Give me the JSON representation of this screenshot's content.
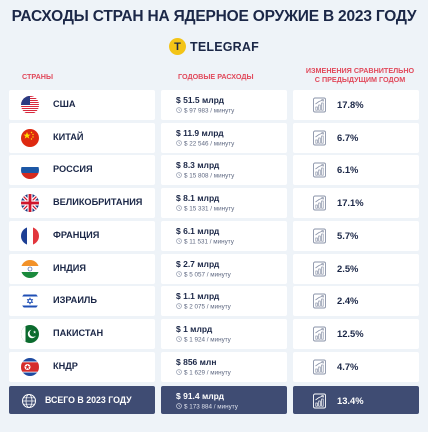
{
  "title": "РАСХОДЫ СТРАН НА ЯДЕРНОЕ ОРУЖИЕ В 2023 ГОДУ",
  "brand": {
    "logo_letter": "T",
    "name": "TELEGRAF"
  },
  "headers": {
    "country": "СТРАНЫ",
    "spend": "ГОДОВЫЕ РАСХОДЫ",
    "change_line1": "ИЗМЕНЕНИЯ СРАВНИТЕЛЬНО",
    "change_line2": "С ПРЕДЫДУЩИМ ГОДОМ"
  },
  "icons": {
    "change": "chart-growth-icon",
    "clock": "clock-icon",
    "total": "globe-icon"
  },
  "chart_data": {
    "type": "table",
    "columns": [
      "СТРАНЫ",
      "ГОДОВЫЕ РАСХОДЫ",
      "ИЗМЕНЕНИЯ СРАВНИТЕЛЬНО С ПРЕДЫДУЩИМ ГОДОМ"
    ],
    "rows": [
      {
        "flag": "usa",
        "country": "США",
        "amount": "$ 51.5 млрд",
        "per_minute": "$ 97 983 / минуту",
        "change": "17.8%"
      },
      {
        "flag": "china",
        "country": "КИТАЙ",
        "amount": "$ 11.9 млрд",
        "per_minute": "$ 22 546 / минуту",
        "change": "6.7%"
      },
      {
        "flag": "russia",
        "country": "РОССИЯ",
        "amount": "$ 8.3 млрд",
        "per_minute": "$ 15 808 / минуту",
        "change": "6.1%"
      },
      {
        "flag": "uk",
        "country": "ВЕЛИКОБРИТАНИЯ",
        "amount": "$ 8.1 млрд",
        "per_minute": "$ 15 331 / минуту",
        "change": "17.1%"
      },
      {
        "flag": "france",
        "country": "ФРАНЦИЯ",
        "amount": "$ 6.1 млрд",
        "per_minute": "$ 11 531 / минуту",
        "change": "5.7%"
      },
      {
        "flag": "india",
        "country": "ИНДИЯ",
        "amount": "$ 2.7 млрд",
        "per_minute": "$ 5 057 / минуту",
        "change": "2.5%"
      },
      {
        "flag": "israel",
        "country": "ИЗРАИЛЬ",
        "amount": "$ 1.1 млрд",
        "per_minute": "$ 2 075 / минуту",
        "change": "2.4%"
      },
      {
        "flag": "pakistan",
        "country": "ПАКИСТАН",
        "amount": "$ 1 млрд",
        "per_minute": "$ 1 924 / минуту",
        "change": "12.5%"
      },
      {
        "flag": "north-korea",
        "country": "КНДР",
        "amount": "$ 856 млн",
        "per_minute": "$ 1 629 / минуту",
        "change": "4.7%"
      }
    ],
    "total": {
      "label": "ВСЕГО В 2023 ГОДУ",
      "amount": "$ 91.4 млрд",
      "per_minute": "$ 173 884 / минуту",
      "change": "13.4%"
    }
  },
  "colors": {
    "accent": "#e1495b",
    "navy": "#1b2747",
    "total_bg": "#3f4c73",
    "brand_yellow": "#f3c417"
  }
}
